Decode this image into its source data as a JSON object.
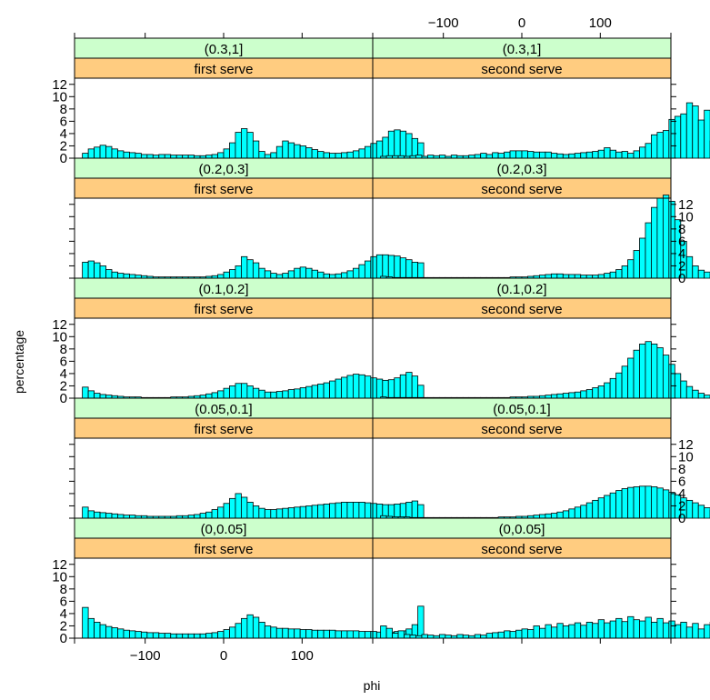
{
  "chart_data": {
    "type": "bar",
    "layout": {
      "columns": 2,
      "rows": 5
    },
    "xlabel": "phi",
    "ylabel": "percentage",
    "xlim": [
      -190,
      190
    ],
    "ylim": [
      0,
      13
    ],
    "x_ticks": [
      -100,
      0,
      100
    ],
    "y_ticks": [
      0,
      2,
      4,
      6,
      8,
      10,
      12
    ],
    "bin_start": -180,
    "bin_width": 7.5,
    "colors": {
      "bar_fill": "#00FFFF",
      "strip_top": "#CCFFCC",
      "strip_bottom": "#FFCC80",
      "border": "#000000"
    },
    "panels": [
      {
        "strip_top": "(0.3,1]",
        "strip_bottom": "first serve",
        "values": [
          0.8,
          1.5,
          1.8,
          2.1,
          1.9,
          1.5,
          1.2,
          1.0,
          0.9,
          0.8,
          0.6,
          0.6,
          0.5,
          0.6,
          0.6,
          0.5,
          0.5,
          0.5,
          0.5,
          0.4,
          0.4,
          0.5,
          0.6,
          0.9,
          1.5,
          2.5,
          4.2,
          4.8,
          4.2,
          2.8,
          1.1,
          0.6,
          0.9,
          1.9,
          2.8,
          2.5,
          2.2,
          2.0,
          1.7,
          1.4,
          1.1,
          0.9,
          0.8,
          0.8,
          0.9,
          1.0,
          1.2,
          1.5,
          1.9,
          2.4,
          2.8,
          3.4,
          4.4,
          4.6,
          4.4,
          4.0,
          3.2,
          2.5
        ]
      },
      {
        "strip_top": "(0.3,1]",
        "strip_bottom": "second serve",
        "values": [
          0.3,
          0.4,
          0.4,
          0.4,
          0.3,
          0.4,
          0.5,
          0.3,
          0.5,
          0.4,
          0.5,
          0.3,
          0.5,
          0.4,
          0.4,
          0.5,
          0.6,
          0.8,
          0.6,
          0.9,
          0.8,
          1.0,
          1.2,
          1.2,
          1.2,
          1.1,
          1.0,
          1.0,
          1.0,
          0.8,
          0.7,
          0.6,
          0.7,
          0.8,
          0.9,
          1.0,
          1.1,
          1.3,
          1.7,
          1.3,
          1.0,
          1.1,
          0.8,
          1.2,
          1.8,
          2.4,
          3.8,
          4.2,
          4.5,
          6.3,
          6.8,
          7.2,
          9.0,
          8.5,
          6.2,
          7.8,
          2.8,
          0.8,
          0.5
        ]
      },
      {
        "strip_top": "(0.2,0.3]",
        "strip_bottom": "first serve",
        "values": [
          2.6,
          2.8,
          2.5,
          2.0,
          1.4,
          1.0,
          0.8,
          0.7,
          0.6,
          0.5,
          0.4,
          0.3,
          0.2,
          0.2,
          0.2,
          0.2,
          0.2,
          0.2,
          0.2,
          0.2,
          0.2,
          0.3,
          0.4,
          0.6,
          1.0,
          1.4,
          2.0,
          3.5,
          3.0,
          2.5,
          1.6,
          1.2,
          0.8,
          0.6,
          0.8,
          1.2,
          1.6,
          1.8,
          1.6,
          1.3,
          1.0,
          0.7,
          0.6,
          0.7,
          0.9,
          1.2,
          1.6,
          2.2,
          2.8,
          3.5,
          3.8,
          3.8,
          3.7,
          3.6,
          3.3,
          3.0,
          2.6,
          2.5
        ]
      },
      {
        "strip_top": "(0.2,0.3]",
        "strip_bottom": "second serve",
        "values": [
          0.3,
          0.2,
          0.1,
          0.1,
          0.1,
          0.1,
          0.1,
          0.1,
          0.1,
          0.1,
          0.1,
          0.1,
          0.1,
          0.1,
          0.1,
          0.1,
          0.1,
          0.1,
          0.1,
          0.1,
          0.1,
          0.1,
          0.2,
          0.2,
          0.2,
          0.3,
          0.4,
          0.5,
          0.6,
          0.7,
          0.7,
          0.6,
          0.6,
          0.6,
          0.5,
          0.5,
          0.5,
          0.6,
          0.8,
          1.0,
          1.4,
          2.0,
          3.0,
          4.5,
          6.5,
          9.0,
          11.5,
          13.0,
          13.5,
          12.5,
          9.5,
          6.0,
          3.5,
          2.0,
          1.3,
          1.0,
          0.7,
          0.4
        ]
      },
      {
        "strip_top": "(0.1,0.2]",
        "strip_bottom": "first serve",
        "values": [
          1.8,
          1.2,
          0.8,
          0.6,
          0.5,
          0.4,
          0.3,
          0.2,
          0.2,
          0.2,
          0.1,
          0.1,
          0.1,
          0.1,
          0.1,
          0.2,
          0.2,
          0.2,
          0.3,
          0.4,
          0.5,
          0.7,
          0.9,
          1.2,
          1.6,
          2.0,
          2.4,
          2.4,
          2.0,
          1.6,
          1.3,
          1.0,
          1.0,
          1.1,
          1.2,
          1.4,
          1.5,
          1.7,
          1.9,
          2.1,
          2.3,
          2.5,
          2.8,
          3.1,
          3.4,
          3.7,
          3.9,
          3.8,
          3.6,
          3.3,
          3.1,
          2.9,
          3.0,
          3.3,
          3.8,
          4.2,
          3.6,
          2.1
        ]
      },
      {
        "strip_top": "(0.1,0.2]",
        "strip_bottom": "second serve",
        "values": [
          0.2,
          0.1,
          0.1,
          0.1,
          0.1,
          0.1,
          0.1,
          0.1,
          0.1,
          0.1,
          0.1,
          0.1,
          0.1,
          0.1,
          0.1,
          0.1,
          0.1,
          0.1,
          0.1,
          0.1,
          0.1,
          0.1,
          0.2,
          0.2,
          0.2,
          0.3,
          0.3,
          0.4,
          0.5,
          0.6,
          0.7,
          0.8,
          0.9,
          1.0,
          1.2,
          1.4,
          1.7,
          2.0,
          2.5,
          3.2,
          4.1,
          5.2,
          6.5,
          7.8,
          8.8,
          9.2,
          8.8,
          8.2,
          7.0,
          5.5,
          4.0,
          2.8,
          1.9,
          1.3,
          0.8,
          0.5,
          0.3,
          0.2
        ]
      },
      {
        "strip_top": "(0.05,0.1]",
        "strip_bottom": "first serve",
        "values": [
          1.8,
          1.2,
          1.0,
          0.9,
          0.8,
          0.7,
          0.6,
          0.5,
          0.5,
          0.4,
          0.4,
          0.3,
          0.3,
          0.3,
          0.3,
          0.3,
          0.4,
          0.4,
          0.5,
          0.6,
          0.8,
          1.0,
          1.4,
          1.8,
          2.4,
          3.2,
          4.0,
          3.4,
          2.6,
          2.0,
          1.6,
          1.4,
          1.4,
          1.5,
          1.6,
          1.7,
          1.8,
          1.9,
          2.0,
          2.1,
          2.2,
          2.3,
          2.4,
          2.5,
          2.6,
          2.6,
          2.6,
          2.6,
          2.5,
          2.4,
          2.3,
          2.2,
          2.2,
          2.3,
          2.4,
          2.6,
          2.8,
          2.2
        ]
      },
      {
        "strip_top": "(0.05,0.1]",
        "strip_bottom": "second serve",
        "values": [
          0.4,
          0.3,
          0.2,
          0.2,
          0.2,
          0.1,
          0.1,
          0.1,
          0.1,
          0.1,
          0.1,
          0.1,
          0.1,
          0.1,
          0.1,
          0.1,
          0.1,
          0.1,
          0.1,
          0.1,
          0.2,
          0.2,
          0.2,
          0.3,
          0.3,
          0.4,
          0.5,
          0.6,
          0.7,
          0.8,
          1.0,
          1.2,
          1.5,
          1.8,
          2.1,
          2.5,
          2.9,
          3.3,
          3.7,
          4.1,
          4.5,
          4.8,
          5.0,
          5.1,
          5.2,
          5.2,
          5.1,
          4.9,
          4.6,
          4.2,
          3.8,
          3.3,
          2.9,
          2.5,
          2.1,
          1.7,
          1.3,
          0.9
        ]
      },
      {
        "strip_top": "(0,0.05]",
        "strip_bottom": "first serve",
        "values": [
          5.0,
          3.2,
          2.6,
          2.2,
          1.9,
          1.7,
          1.5,
          1.3,
          1.2,
          1.1,
          1.0,
          0.9,
          0.9,
          0.8,
          0.8,
          0.7,
          0.7,
          0.7,
          0.7,
          0.7,
          0.7,
          0.8,
          0.9,
          1.1,
          1.4,
          1.8,
          2.4,
          3.2,
          3.8,
          3.4,
          2.6,
          2.0,
          1.8,
          1.6,
          1.6,
          1.5,
          1.5,
          1.4,
          1.4,
          1.3,
          1.3,
          1.3,
          1.3,
          1.2,
          1.2,
          1.2,
          1.2,
          1.1,
          1.1,
          1.1,
          1.0,
          1.0,
          1.0,
          1.1,
          1.2,
          1.5,
          2.2,
          5.2
        ]
      },
      {
        "strip_top": "(0,0.05]",
        "strip_bottom": "second serve",
        "values": [
          2.0,
          1.6,
          0.8,
          1.2,
          0.6,
          0.5,
          0.4,
          0.6,
          0.5,
          0.4,
          0.6,
          0.5,
          0.4,
          0.6,
          0.5,
          0.4,
          0.6,
          0.5,
          0.8,
          0.9,
          1.0,
          1.2,
          1.1,
          1.3,
          1.5,
          1.4,
          2.0,
          1.6,
          2.2,
          1.8,
          2.4,
          2.0,
          2.2,
          2.5,
          2.1,
          2.6,
          2.4,
          3.0,
          2.5,
          2.8,
          3.2,
          2.7,
          3.5,
          3.0,
          2.8,
          3.4,
          2.6,
          3.2,
          2.5,
          2.8,
          2.2,
          2.6,
          1.8,
          2.4,
          1.5,
          2.2,
          2.6,
          1.2,
          3.2
        ]
      }
    ]
  }
}
